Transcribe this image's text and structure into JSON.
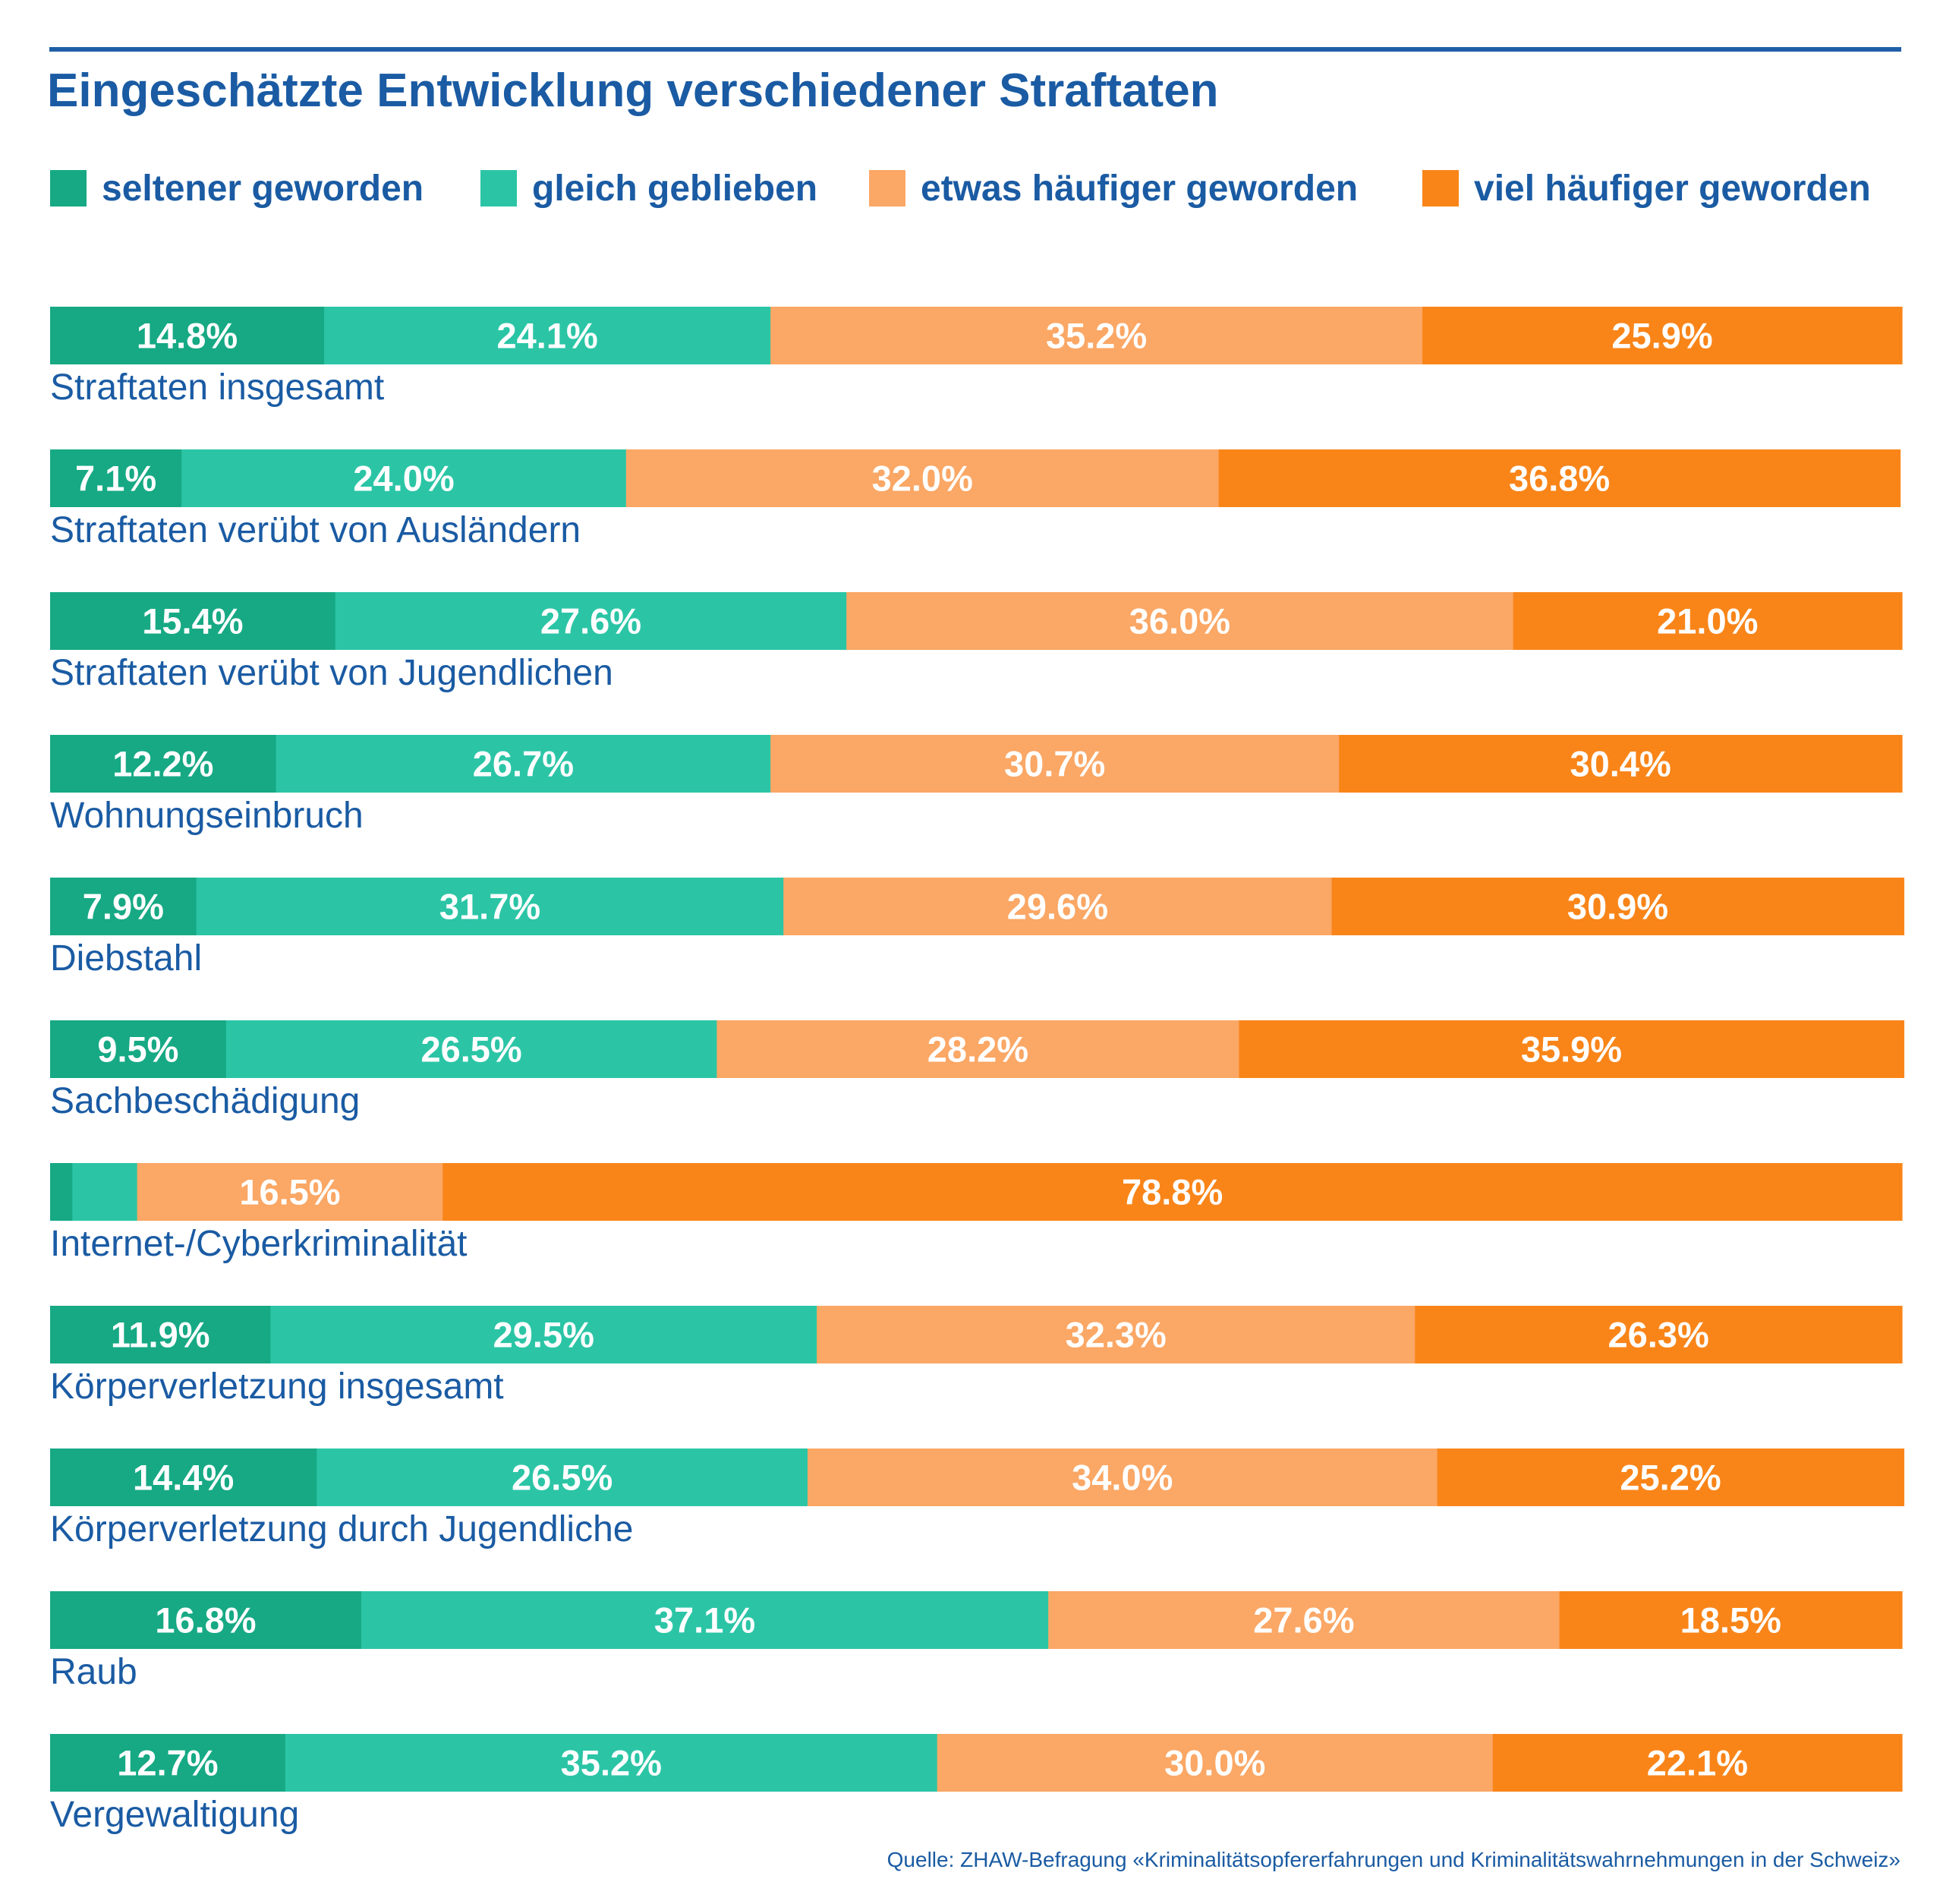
{
  "colors": {
    "title": "#1a5ba3",
    "rule": "#1f5fa6",
    "segment_label": "#ffffff"
  },
  "chart_data": {
    "type": "bar",
    "orientation": "horizontal",
    "stacked": true,
    "normalized_100_percent": true,
    "title": "Eingeschätzte Entwicklung verschiedener Straftaten",
    "legend_position": "top",
    "categories": [
      "Straftaten insgesamt",
      "Straftaten verübt von Ausländern",
      "Straftaten verübt von Jugendlichen",
      "Wohnungseinbruch",
      "Diebstahl",
      "Sachbeschädigung",
      "Internet-/Cyberkriminalität",
      "Körperverletzung insgesamt",
      "Körperverletzung durch Jugendliche",
      "Raub",
      "Vergewaltigung"
    ],
    "series": [
      {
        "name": "seltener geworden",
        "color": "#16a984",
        "values": [
          14.8,
          7.1,
          15.4,
          12.2,
          7.9,
          9.5,
          1.2,
          11.9,
          14.4,
          16.8,
          12.7
        ],
        "labels": [
          "14.8%",
          "7.1%",
          "15.4%",
          "12.2%",
          "7.9%",
          "9.5%",
          "",
          "11.9%",
          "14.4%",
          "16.8%",
          "12.7%"
        ]
      },
      {
        "name": "gleich geblieben",
        "color": "#2bc5a6",
        "values": [
          24.1,
          24.0,
          27.6,
          26.7,
          31.7,
          26.5,
          3.5,
          29.5,
          26.5,
          37.1,
          35.2
        ],
        "labels": [
          "24.1%",
          "24.0%",
          "27.6%",
          "26.7%",
          "31.7%",
          "26.5%",
          "",
          "29.5%",
          "26.5%",
          "37.1%",
          "35.2%"
        ]
      },
      {
        "name": "etwas häufiger geworden",
        "color": "#fba765",
        "values": [
          35.2,
          32.0,
          36.0,
          30.7,
          29.6,
          28.2,
          16.5,
          32.3,
          34.0,
          27.6,
          30.0
        ],
        "labels": [
          "35.2%",
          "32.0%",
          "36.0%",
          "30.7%",
          "29.6%",
          "28.2%",
          "16.5%",
          "32.3%",
          "34.0%",
          "27.6%",
          "30.0%"
        ]
      },
      {
        "name": "viel häufiger geworden",
        "color": "#f98519",
        "values": [
          25.9,
          36.8,
          21.0,
          30.4,
          30.9,
          35.9,
          78.8,
          26.3,
          25.2,
          18.5,
          22.1
        ],
        "labels": [
          "25.9%",
          "36.8%",
          "21.0%",
          "30.4%",
          "30.9%",
          "35.9%",
          "78.8%",
          "26.3%",
          "25.2%",
          "18.5%",
          "22.1%"
        ]
      }
    ],
    "xlim": [
      0,
      100
    ]
  },
  "source_note": "Quelle: ZHAW-Befragung «Kriminalitätsopfererfahrungen und Kriminalitätswahrnehmungen in der Schweiz»"
}
